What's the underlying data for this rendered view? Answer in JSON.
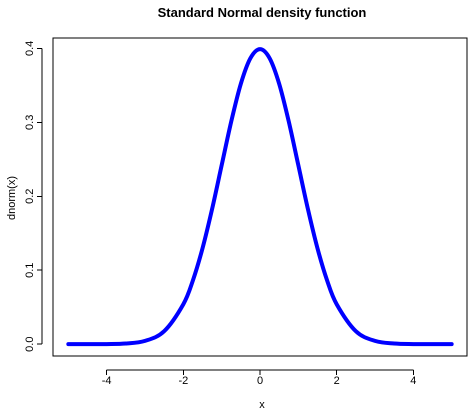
{
  "chart_data": {
    "type": "line",
    "title": "Standard Normal density function",
    "xlabel": "x",
    "ylabel": "dnorm(x)",
    "xlim": [
      -5.4,
      5.4
    ],
    "ylim": [
      -0.016,
      0.414
    ],
    "x_ticks": [
      -4,
      -2,
      0,
      2,
      4
    ],
    "y_ticks": [
      0.0,
      0.1,
      0.2,
      0.3,
      0.4
    ],
    "x_tick_labels": [
      "-4",
      "-2",
      "0",
      "2",
      "4"
    ],
    "y_tick_labels": [
      "0.0",
      "0.1",
      "0.2",
      "0.3",
      "0.4"
    ],
    "grid": false,
    "series": [
      {
        "color": "#0000ff",
        "x": [
          -5.0,
          -4.5,
          -4.0,
          -3.5,
          -3.0,
          -2.5,
          -2.0,
          -1.75,
          -1.5,
          -1.25,
          -1.0,
          -0.75,
          -0.5,
          -0.25,
          0.0,
          0.25,
          0.5,
          0.75,
          1.0,
          1.25,
          1.5,
          1.75,
          2.0,
          2.5,
          3.0,
          3.5,
          4.0,
          4.5,
          5.0
        ],
        "values": [
          1.5e-06,
          1.6e-05,
          0.000134,
          0.000873,
          0.004432,
          0.017528,
          0.053991,
          0.086277,
          0.129518,
          0.182649,
          0.241971,
          0.301137,
          0.352065,
          0.386668,
          0.398942,
          0.386668,
          0.352065,
          0.301137,
          0.241971,
          0.182649,
          0.129518,
          0.086277,
          0.053991,
          0.017528,
          0.004432,
          0.000873,
          0.000134,
          1.6e-05,
          1.5e-06
        ]
      }
    ]
  }
}
